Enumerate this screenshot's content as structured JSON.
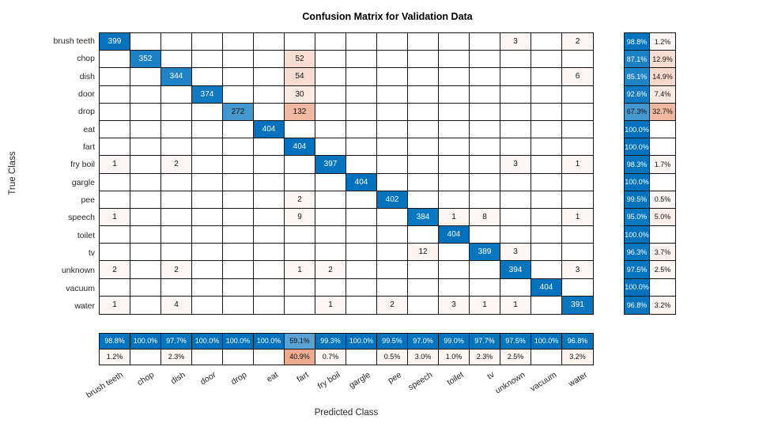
{
  "title": "Confusion Matrix for Validation Data",
  "xlabel": "Predicted Class",
  "ylabel": "True Class",
  "colors": {
    "diagonal_base": "#0072BD",
    "offdiagonal_base": "#D95319",
    "grid_line": "#161616",
    "tick_text": "#262626",
    "cell_text_dark": "#111111",
    "cell_text_light": "#FFFFFF"
  },
  "chart_data": {
    "type": "heatmap",
    "subtype": "confusion-matrix",
    "title": "Confusion Matrix for Validation Data",
    "xlabel": "Predicted Class",
    "ylabel": "True Class",
    "classes": [
      "brush teeth",
      "chop",
      "dish",
      "door",
      "drop",
      "eat",
      "fart",
      "fry boil",
      "gargle",
      "pee",
      "speech",
      "toilet",
      "tv",
      "unknown",
      "vacuum",
      "water"
    ],
    "matrix": [
      [
        399,
        0,
        0,
        0,
        0,
        0,
        0,
        0,
        0,
        0,
        0,
        0,
        0,
        3,
        0,
        2
      ],
      [
        0,
        352,
        0,
        0,
        0,
        0,
        52,
        0,
        0,
        0,
        0,
        0,
        0,
        0,
        0,
        0
      ],
      [
        0,
        0,
        344,
        0,
        0,
        0,
        54,
        0,
        0,
        0,
        0,
        0,
        0,
        0,
        0,
        6
      ],
      [
        0,
        0,
        0,
        374,
        0,
        0,
        30,
        0,
        0,
        0,
        0,
        0,
        0,
        0,
        0,
        0
      ],
      [
        0,
        0,
        0,
        0,
        272,
        0,
        132,
        0,
        0,
        0,
        0,
        0,
        0,
        0,
        0,
        0
      ],
      [
        0,
        0,
        0,
        0,
        0,
        404,
        0,
        0,
        0,
        0,
        0,
        0,
        0,
        0,
        0,
        0
      ],
      [
        0,
        0,
        0,
        0,
        0,
        0,
        404,
        0,
        0,
        0,
        0,
        0,
        0,
        0,
        0,
        0
      ],
      [
        1,
        0,
        2,
        0,
        0,
        0,
        0,
        397,
        0,
        0,
        0,
        0,
        0,
        3,
        0,
        1
      ],
      [
        0,
        0,
        0,
        0,
        0,
        0,
        0,
        0,
        404,
        0,
        0,
        0,
        0,
        0,
        0,
        0
      ],
      [
        0,
        0,
        0,
        0,
        0,
        0,
        2,
        0,
        0,
        402,
        0,
        0,
        0,
        0,
        0,
        0
      ],
      [
        1,
        0,
        0,
        0,
        0,
        0,
        9,
        0,
        0,
        0,
        384,
        1,
        8,
        0,
        0,
        1
      ],
      [
        0,
        0,
        0,
        0,
        0,
        0,
        0,
        0,
        0,
        0,
        0,
        404,
        0,
        0,
        0,
        0
      ],
      [
        0,
        0,
        0,
        0,
        0,
        0,
        0,
        0,
        0,
        0,
        12,
        0,
        389,
        3,
        0,
        0
      ],
      [
        2,
        0,
        2,
        0,
        0,
        0,
        1,
        2,
        0,
        0,
        0,
        0,
        0,
        394,
        0,
        3
      ],
      [
        0,
        0,
        0,
        0,
        0,
        0,
        0,
        0,
        0,
        0,
        0,
        0,
        0,
        0,
        404,
        0
      ],
      [
        1,
        0,
        4,
        0,
        0,
        0,
        0,
        1,
        0,
        2,
        0,
        3,
        1,
        1,
        0,
        391
      ]
    ],
    "row_summary": [
      [
        "98.8%",
        "1.2%"
      ],
      [
        "87.1%",
        "12.9%"
      ],
      [
        "85.1%",
        "14.9%"
      ],
      [
        "92.6%",
        "7.4%"
      ],
      [
        "67.3%",
        "32.7%"
      ],
      [
        "100.0%",
        ""
      ],
      [
        "100.0%",
        ""
      ],
      [
        "98.3%",
        "1.7%"
      ],
      [
        "100.0%",
        ""
      ],
      [
        "99.5%",
        "0.5%"
      ],
      [
        "95.0%",
        "5.0%"
      ],
      [
        "100.0%",
        ""
      ],
      [
        "96.3%",
        "3.7%"
      ],
      [
        "97.5%",
        "2.5%"
      ],
      [
        "100.0%",
        ""
      ],
      [
        "96.8%",
        "3.2%"
      ]
    ],
    "col_summary": [
      [
        "98.8%",
        "1.2%"
      ],
      [
        "100.0%",
        ""
      ],
      [
        "97.7%",
        "2.3%"
      ],
      [
        "100.0%",
        ""
      ],
      [
        "100.0%",
        ""
      ],
      [
        "100.0%",
        ""
      ],
      [
        "59.1%",
        "40.9%"
      ],
      [
        "99.3%",
        "0.7%"
      ],
      [
        "100.0%",
        ""
      ],
      [
        "99.5%",
        "0.5%"
      ],
      [
        "97.0%",
        "3.0%"
      ],
      [
        "99.0%",
        "1.0%"
      ],
      [
        "97.7%",
        "2.3%"
      ],
      [
        "97.5%",
        "2.5%"
      ],
      [
        "100.0%",
        ""
      ],
      [
        "96.8%",
        "3.2%"
      ]
    ],
    "legend_position": "none",
    "grid": true
  }
}
